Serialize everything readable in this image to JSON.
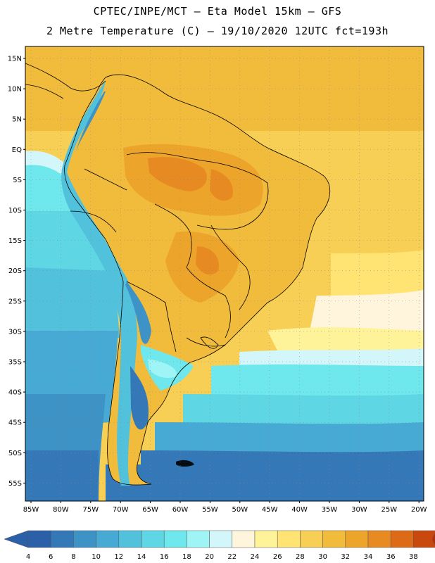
{
  "header": {
    "title_line1": "CPTEC/INPE/MCT –  Eta Model 15km – GFS",
    "title_line2": "2 Metre Temperature (C) – 19/10/2020 12UTC fct=193h"
  },
  "map": {
    "lat_labels": [
      "15N",
      "10N",
      "5N",
      "EQ",
      "5S",
      "10S",
      "15S",
      "20S",
      "25S",
      "30S",
      "35S",
      "40S",
      "45S",
      "50S",
      "55S"
    ],
    "lon_labels": [
      "85W",
      "80W",
      "75W",
      "70W",
      "65W",
      "60W",
      "55W",
      "50W",
      "45W",
      "40W",
      "35W",
      "30W",
      "25W",
      "20W"
    ]
  },
  "colorbar": {
    "labels": [
      "4",
      "6",
      "8",
      "10",
      "12",
      "14",
      "16",
      "18",
      "20",
      "22",
      "24",
      "26",
      "28",
      "30",
      "32",
      "34",
      "36",
      "38"
    ],
    "colors": [
      "#2b5fa8",
      "#3578b8",
      "#3d92c6",
      "#47aad4",
      "#52c2dc",
      "#5ed6e4",
      "#6ee8ec",
      "#9ff4f6",
      "#d3f6fa",
      "#fff5dc",
      "#fff39a",
      "#ffe474",
      "#f7cf54",
      "#f1bb3c",
      "#eda42a",
      "#e88a22",
      "#dd6a16",
      "#c8480e",
      "#b0300a"
    ],
    "under_color": "#2b5fa8",
    "over_color": "#b0300a"
  }
}
